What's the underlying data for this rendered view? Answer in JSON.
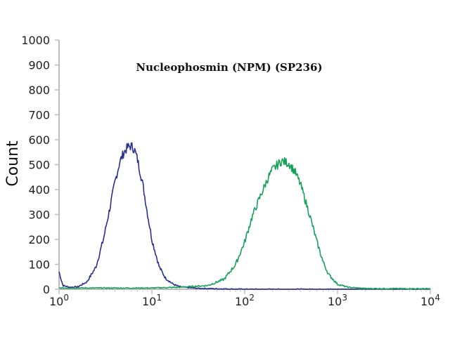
{
  "chart_data": {
    "type": "line",
    "title": "Nucleophosmin (NPM) (SP236)",
    "xlabel": "",
    "ylabel": "Count",
    "x_scale": "log",
    "xlim": [
      1,
      10000
    ],
    "ylim": [
      0,
      1000
    ],
    "x_ticks": [
      {
        "value": 1,
        "base": "10",
        "exp": "0"
      },
      {
        "value": 10,
        "base": "10",
        "exp": "1"
      },
      {
        "value": 100,
        "base": "10",
        "exp": "2"
      },
      {
        "value": 1000,
        "base": "10",
        "exp": "3"
      },
      {
        "value": 10000,
        "base": "10",
        "exp": "4"
      }
    ],
    "y_ticks": [
      "0",
      "100",
      "200",
      "300",
      "400",
      "500",
      "600",
      "700",
      "800",
      "900",
      "1000"
    ],
    "grid": false,
    "legend": "none",
    "series": [
      {
        "color": "#2b2f8f",
        "x": [
          1,
          1.1,
          1.3,
          1.6,
          2,
          2.5,
          3,
          3.5,
          4,
          4.5,
          5,
          5.5,
          6,
          6.5,
          7,
          8,
          9,
          10,
          12,
          14,
          17,
          20,
          30,
          50,
          100,
          1000,
          10000
        ],
        "y": [
          70,
          15,
          8,
          10,
          30,
          90,
          200,
          320,
          430,
          510,
          550,
          570,
          575,
          560,
          520,
          420,
          300,
          200,
          90,
          45,
          20,
          10,
          4,
          2,
          0,
          0,
          0
        ]
      },
      {
        "color": "#18a15a",
        "x": [
          1,
          10,
          20,
          40,
          60,
          80,
          100,
          120,
          150,
          180,
          200,
          250,
          300,
          350,
          400,
          500,
          600,
          700,
          800,
          1000,
          1300,
          2000,
          10000
        ],
        "y": [
          5,
          5,
          8,
          15,
          40,
          100,
          190,
          290,
          380,
          450,
          480,
          515,
          505,
          470,
          420,
          300,
          190,
          110,
          60,
          20,
          8,
          3,
          2
        ]
      }
    ]
  }
}
